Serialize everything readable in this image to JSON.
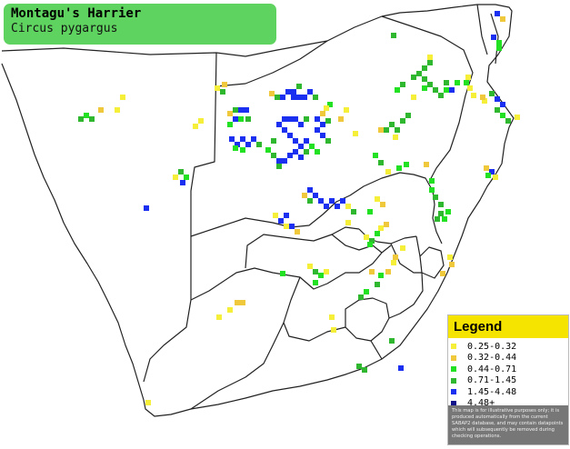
{
  "title": "Montagu's Harrier",
  "subtitle": "Circus pygargus",
  "legend": {
    "heading": "Legend",
    "items": [
      {
        "label": "0.25-0.32",
        "color": "#f5ef3a"
      },
      {
        "label": "0.32-0.44",
        "color": "#f0c83c"
      },
      {
        "label": "0.44-0.71",
        "color": "#22e022"
      },
      {
        "label": "0.71-1.45",
        "color": "#2fb82f"
      },
      {
        "label": "1.45-4.48",
        "color": "#1a2ff0"
      },
      {
        "label": "4.48+",
        "color": "#12128a"
      }
    ],
    "disclaimer": "This map is for illustrative purposes only; it is produced automatically from the current SABAP2 database, and may contain datapoints which will subsequently be removed during checking operations."
  }
}
